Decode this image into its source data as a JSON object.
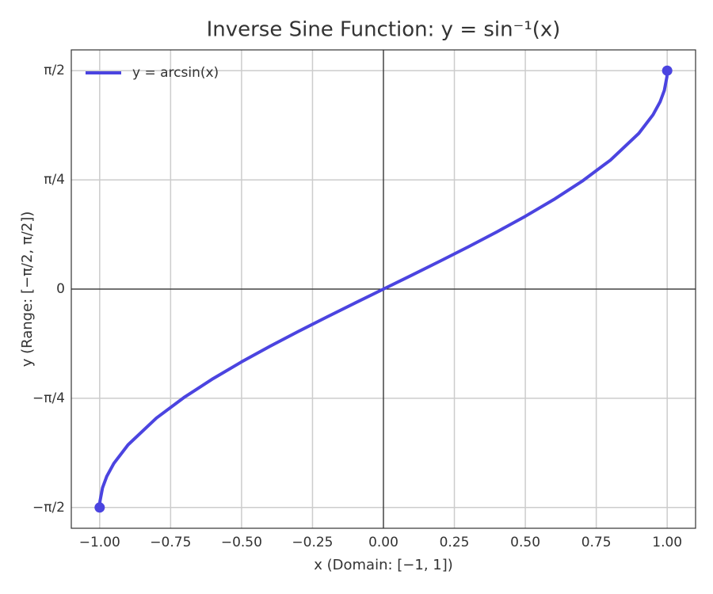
{
  "chart_data": {
    "type": "line",
    "title": "Inverse Sine Function: y = sin⁻¹(x)",
    "xlabel": "x (Domain: [−1, 1])",
    "ylabel": "y (Range: [−π/2, π/2])",
    "x": [
      -1,
      -0.999,
      -0.99,
      -0.975,
      -0.95,
      -0.9,
      -0.8,
      -0.7,
      -0.6,
      -0.5,
      -0.4,
      -0.3,
      -0.2,
      -0.1,
      0,
      0.1,
      0.2,
      0.3,
      0.4,
      0.5,
      0.6,
      0.7,
      0.8,
      0.9,
      0.95,
      0.975,
      0.99,
      0.999,
      1
    ],
    "series": [
      {
        "name": "y = arcsin(x)",
        "color": "#4b44e0",
        "values": [
          -1.5708,
          -1.5261,
          -1.4293,
          -1.3467,
          -1.2532,
          -1.1198,
          -0.9273,
          -0.7754,
          -0.6435,
          -0.5236,
          -0.4115,
          -0.3047,
          -0.2014,
          -0.1002,
          0,
          0.1002,
          0.2014,
          0.3047,
          0.4115,
          0.5236,
          0.6435,
          0.7754,
          0.9273,
          1.1198,
          1.2532,
          1.3467,
          1.4293,
          1.5261,
          1.5708
        ]
      }
    ],
    "endpoints": {
      "x": [
        -1,
        1
      ],
      "values": [
        -1.5708,
        1.5708
      ]
    },
    "xlim": [
      -1.1,
      1.1
    ],
    "ylim": [
      -1.72,
      1.72
    ],
    "xticks": [
      {
        "value": -1,
        "label": "−1.00"
      },
      {
        "value": -0.75,
        "label": "−0.75"
      },
      {
        "value": -0.5,
        "label": "−0.50"
      },
      {
        "value": -0.25,
        "label": "−0.25"
      },
      {
        "value": 0,
        "label": "0.00"
      },
      {
        "value": 0.25,
        "label": "0.25"
      },
      {
        "value": 0.5,
        "label": "0.50"
      },
      {
        "value": 0.75,
        "label": "0.75"
      },
      {
        "value": 1,
        "label": "1.00"
      }
    ],
    "yticks": [
      {
        "value": -1.5708,
        "label": "−π/2"
      },
      {
        "value": -0.7854,
        "label": "−π/4"
      },
      0,
      {
        "value": 0.7854,
        "label": "π/4"
      },
      {
        "value": 1.5708,
        "label": "π/2"
      }
    ],
    "grid": true,
    "zero_lines": true,
    "legend": "upper left"
  }
}
